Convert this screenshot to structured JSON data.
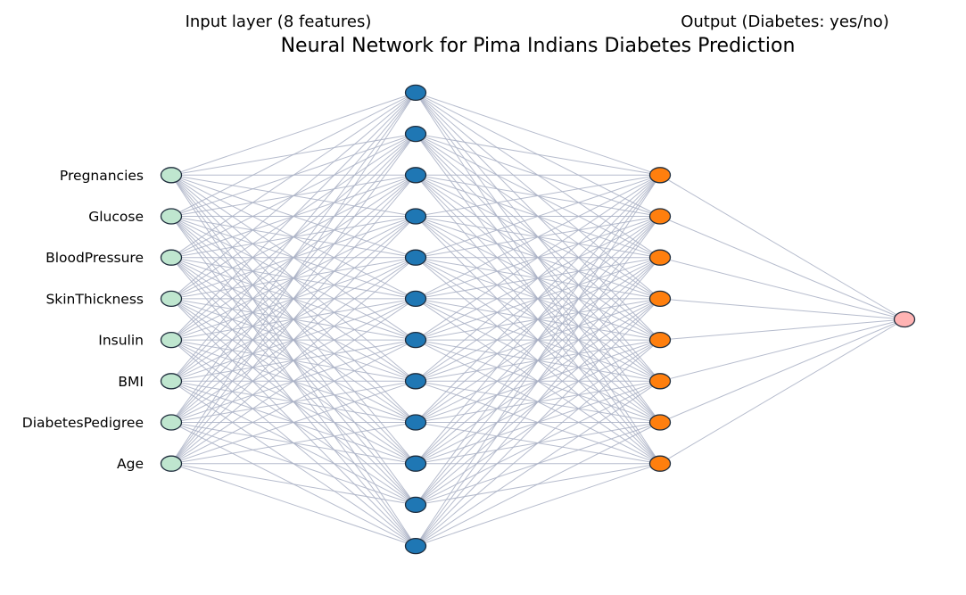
{
  "title": "Neural Network for Pima Indians Diabetes Prediction",
  "input_layer_label": "Input layer (8 features)",
  "output_layer_label": "Output (Diabetes: yes/no)",
  "features": [
    "Pregnancies",
    "Glucose",
    "BloodPressure",
    "SkinThickness",
    "Insulin",
    "BMI",
    "DiabetesPedigree",
    "Age"
  ],
  "layers": [
    {
      "name": "input",
      "units": 8,
      "color": "#bfe6cf"
    },
    {
      "name": "hidden-1",
      "units": 12,
      "color": "#1f77b4"
    },
    {
      "name": "hidden-2",
      "units": 8,
      "color": "#ff7f0e"
    },
    {
      "name": "output",
      "units": 1,
      "color": "#ffb3b3"
    }
  ],
  "connectivity": "fully-connected",
  "colors": {
    "edge": "#a9b0c4",
    "node_outline": "#1f2d3d"
  }
}
